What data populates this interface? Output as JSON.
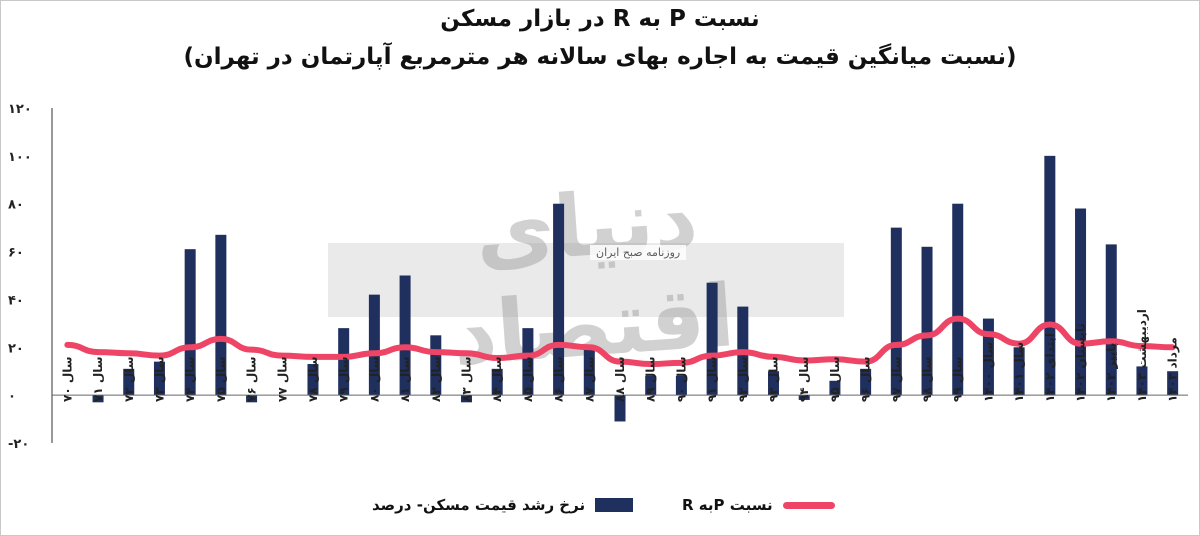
{
  "titles": {
    "main": "نسبت  P به  R در بازار مسکن",
    "sub": "(نسبت میانگین قیمت به اجاره بهای سالانه هر مترمربع آپارتمان در تهران)"
  },
  "watermark": {
    "brand": "دنیای اقتصاد",
    "tagline": "روزنامه صبح ایران"
  },
  "colors": {
    "bar": "#1f2f5e",
    "line": "#ee4466",
    "axis": "#333333"
  },
  "chart_data": {
    "type": "bar",
    "title": "نسبت  P به  R در بازار مسکن",
    "subtitle": "(نسبت میانگین قیمت به اجاره بهای سالانه هر مترمربع آپارتمان در تهران)",
    "ylim": [
      -20,
      120
    ],
    "yticks": [
      -20,
      0,
      20,
      40,
      60,
      80,
      100,
      120
    ],
    "ytick_labels": [
      "-۲۰",
      "۰",
      "۲۰",
      "۴۰",
      "۶۰",
      "۸۰",
      "۱۰۰",
      "۱۲۰"
    ],
    "categories": [
      "سال ۷۰",
      "سال ۷۱",
      "سال ۷۲",
      "سال ۷۳",
      "سال ۷۴",
      "سال ۷۵",
      "سال ۷۶",
      "سال ۷۷",
      "سال ۷۸",
      "سال ۷۹",
      "سال ۸۰",
      "سال ۸۱",
      "سال ۸۲",
      "سال ۸۳",
      "سال ۸۴",
      "سال ۸۵",
      "سال ۸۶",
      "سال ۸۷",
      "سال ۸۸",
      "سال ۸۹",
      "سال ۹۰",
      "سال ۹۱",
      "سال ۹۲",
      "سال ۹۳",
      "سال ۹۴",
      "سال ۹۵",
      "سال ۹۶",
      "سال ۹۷",
      "سال ۹۸",
      "سال ۹۹",
      "سال ۱۴۰۰",
      "سال ۱۴۰۱",
      "ابتدای ۱۴۰۲",
      "تابستان ۱۴۰۲",
      "پاییز ۱۴۰۲",
      "اردیبهشت ۱۴۰۳",
      "مرداد ۱۴۰۳"
    ],
    "series": [
      {
        "name": "نرخ رشد قیمت مسکن- درصد",
        "type": "bar",
        "values": [
          0,
          -3,
          11,
          14,
          61,
          67,
          -3,
          0,
          13,
          28,
          42,
          50,
          25,
          -3,
          11,
          28,
          80,
          19,
          -11,
          8,
          8,
          47,
          37,
          10,
          -2,
          6,
          11,
          70,
          62,
          80,
          32,
          20,
          100,
          78,
          63,
          12,
          10
        ]
      },
      {
        "name": "نسبت  Pبه R",
        "type": "line",
        "values": [
          21,
          18,
          17.5,
          16.5,
          20,
          23.5,
          19,
          16.5,
          16,
          16,
          17.5,
          20,
          18,
          17.5,
          15.5,
          16.5,
          21,
          20,
          14,
          13,
          13.5,
          16.5,
          18,
          16,
          14.5,
          15,
          14,
          21,
          25,
          32,
          25.5,
          21.5,
          29.5,
          21.5,
          22.5,
          20.5,
          20
        ]
      }
    ],
    "legend_position": "bottom",
    "grid": false
  }
}
